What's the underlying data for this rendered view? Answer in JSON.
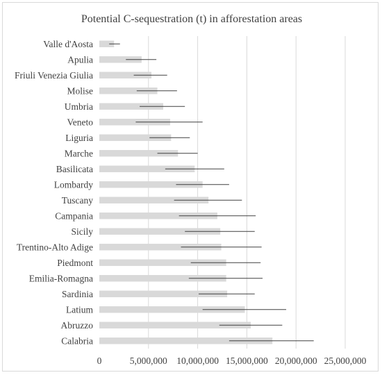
{
  "chart_data": {
    "type": "bar",
    "orientation": "horizontal",
    "title": "Potential C-sequestration (t) in afforestation areas",
    "xlabel": "",
    "ylabel": "",
    "xlim": [
      0,
      25000000
    ],
    "xticks": [
      0,
      5000000,
      10000000,
      15000000,
      20000000,
      25000000
    ],
    "xtick_labels": [
      "0",
      "5,000,000",
      "10,000,000",
      "15,000,000",
      "20,000,000",
      "25,000,000"
    ],
    "grid": "vertical",
    "legend": "none",
    "bar_color": "#d9d9d9",
    "error_color": "#404040",
    "categories": [
      "Valle d'Aosta",
      "Apulia",
      "Friuli Venezia Giulia",
      "Molise",
      "Umbria",
      "Veneto",
      "Liguria",
      "Marche",
      "Basilicata",
      "Lombardy",
      "Tuscany",
      "Campania",
      "Sicily",
      "Trentino-Alto Adige",
      "Piedmont",
      "Emilia-Romagna",
      "Sardinia",
      "Latium",
      "Abruzzo",
      "Calabria"
    ],
    "values": [
      1500000,
      4300000,
      5300000,
      5900000,
      6500000,
      7200000,
      7300000,
      8000000,
      9700000,
      10500000,
      11100000,
      12000000,
      12300000,
      12400000,
      12900000,
      12900000,
      13000000,
      14800000,
      15400000,
      17600000
    ],
    "err_low": [
      1000000,
      2700000,
      3500000,
      3800000,
      4100000,
      3700000,
      5100000,
      5900000,
      6700000,
      7800000,
      7600000,
      8100000,
      8700000,
      8300000,
      9300000,
      9100000,
      10100000,
      10500000,
      12200000,
      13200000
    ],
    "err_high": [
      2100000,
      5800000,
      6900000,
      7900000,
      8700000,
      10500000,
      9200000,
      10000000,
      12700000,
      13200000,
      14500000,
      15900000,
      15800000,
      16500000,
      16400000,
      16600000,
      15800000,
      19000000,
      18600000,
      21800000
    ]
  }
}
